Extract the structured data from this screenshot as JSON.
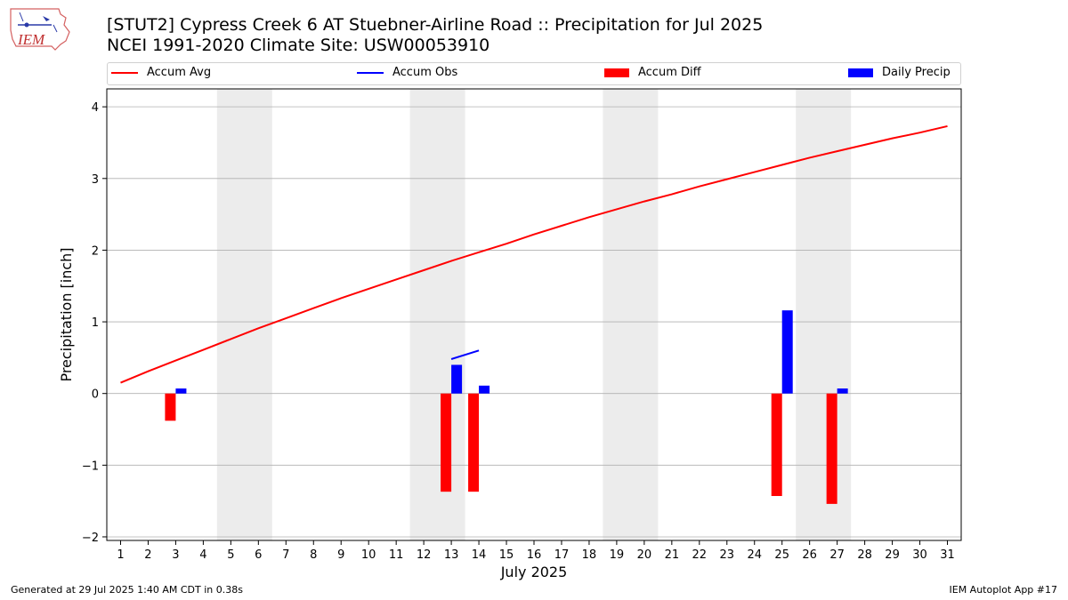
{
  "header": {
    "title_line1": "[STUT2] Cypress Creek 6 AT Stuebner-Airline Road :: Precipitation for Jul 2025",
    "title_line2": "NCEI 1991-2020 Climate Site: USW00053910",
    "logo_text": "IEM"
  },
  "legend": {
    "items": [
      {
        "label": "Accum Avg",
        "kind": "line",
        "color": "#ff0000"
      },
      {
        "label": "Accum Obs",
        "kind": "line",
        "color": "#0000ff"
      },
      {
        "label": "Accum Diff",
        "kind": "box",
        "color": "#ff0000"
      },
      {
        "label": "Daily Precip",
        "kind": "box",
        "color": "#0000ff"
      }
    ]
  },
  "footer": {
    "generated": "Generated at 29 Jul 2025 1:40 AM CDT in 0.38s",
    "app": "IEM Autoplot App #17"
  },
  "chart_data": {
    "type": "bar",
    "xlabel": "July 2025",
    "ylabel": "Precipitation [inch]",
    "ylim": [
      -2.05,
      4.25
    ],
    "yticks": [
      -2,
      -1,
      0,
      1,
      2,
      3,
      4
    ],
    "ytick_labels": [
      "−2",
      "−1",
      "0",
      "1",
      "2",
      "3",
      "4"
    ],
    "xlim": [
      0.5,
      31.5
    ],
    "x": [
      1,
      2,
      3,
      4,
      5,
      6,
      7,
      8,
      9,
      10,
      11,
      12,
      13,
      14,
      15,
      16,
      17,
      18,
      19,
      20,
      21,
      22,
      23,
      24,
      25,
      26,
      27,
      28,
      29,
      30,
      31
    ],
    "weekend_shading": [
      [
        4.5,
        6.5
      ],
      [
        11.5,
        13.5
      ],
      [
        18.5,
        20.5
      ],
      [
        25.5,
        27.5
      ]
    ],
    "grid": "horizontal",
    "colors": {
      "avg": "#ff0000",
      "obs": "#0000ff",
      "diff": "#ff0000",
      "daily": "#0000ff",
      "shade": "#ececec",
      "grid": "#b0b0b0"
    },
    "series": [
      {
        "name": "Accum Avg",
        "kind": "line",
        "values": [
          0.15,
          0.31,
          0.46,
          0.61,
          0.76,
          0.91,
          1.05,
          1.19,
          1.33,
          1.46,
          1.59,
          1.72,
          1.85,
          1.97,
          2.09,
          2.22,
          2.34,
          2.46,
          2.57,
          2.68,
          2.78,
          2.89,
          2.99,
          3.09,
          3.19,
          3.29,
          3.38,
          3.47,
          3.56,
          3.64,
          3.73
        ]
      },
      {
        "name": "Accum Obs",
        "kind": "line",
        "x": [
          13,
          14
        ],
        "values": [
          0.48,
          0.6
        ]
      },
      {
        "name": "Accum Diff",
        "kind": "bar",
        "x": [
          3,
          13,
          14,
          25,
          27
        ],
        "values": [
          -0.38,
          -1.37,
          -1.37,
          -1.43,
          -1.54
        ]
      },
      {
        "name": "Daily Precip",
        "kind": "bar",
        "x": [
          3,
          13,
          14,
          25,
          27
        ],
        "values": [
          0.07,
          0.4,
          0.11,
          1.16,
          0.07
        ]
      }
    ]
  }
}
